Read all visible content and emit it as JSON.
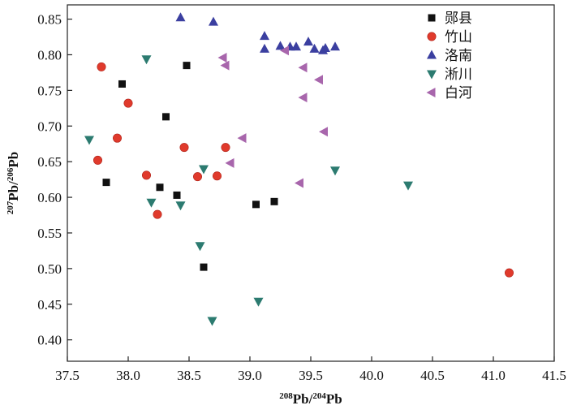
{
  "chart_data": {
    "type": "scatter",
    "xlabel": {
      "sup1": "208",
      "main1": "Pb/",
      "sup2": "204",
      "main2": "Pb"
    },
    "ylabel": {
      "sup1": "207",
      "main1": "Pb/",
      "sup2": "206",
      "main2": "Pb"
    },
    "xlim": [
      37.5,
      41.5
    ],
    "ylim": [
      0.37,
      0.87
    ],
    "xticks": [
      "37.5",
      "38.0",
      "38.5",
      "39.0",
      "39.5",
      "40.0",
      "40.5",
      "41.0",
      "41.5"
    ],
    "yticks": [
      "0.40",
      "0.45",
      "0.50",
      "0.55",
      "0.60",
      "0.65",
      "0.70",
      "0.75",
      "0.80",
      "0.85"
    ],
    "grid": false,
    "legend_position": "top-right",
    "series": [
      {
        "name": "郧县",
        "marker": "square",
        "color": "#111111",
        "points": [
          [
            37.82,
            0.621
          ],
          [
            37.95,
            0.759
          ],
          [
            38.26,
            0.614
          ],
          [
            38.31,
            0.713
          ],
          [
            38.4,
            0.603
          ],
          [
            38.48,
            0.785
          ],
          [
            38.62,
            0.502
          ],
          [
            39.05,
            0.59
          ],
          [
            39.2,
            0.594
          ]
        ]
      },
      {
        "name": "竹山",
        "marker": "circle",
        "color": "#e03a2c",
        "points": [
          [
            37.75,
            0.652
          ],
          [
            37.78,
            0.783
          ],
          [
            37.91,
            0.683
          ],
          [
            38.0,
            0.732
          ],
          [
            38.15,
            0.631
          ],
          [
            38.24,
            0.576
          ],
          [
            38.46,
            0.67
          ],
          [
            38.57,
            0.629
          ],
          [
            38.73,
            0.63
          ],
          [
            38.8,
            0.67
          ],
          [
            41.13,
            0.494
          ]
        ]
      },
      {
        "name": "洛南",
        "marker": "triangle-up",
        "color": "#3b3fa0",
        "points": [
          [
            38.43,
            0.852
          ],
          [
            38.7,
            0.846
          ],
          [
            39.12,
            0.826
          ],
          [
            39.12,
            0.808
          ],
          [
            39.25,
            0.812
          ],
          [
            39.33,
            0.811
          ],
          [
            39.38,
            0.811
          ],
          [
            39.48,
            0.818
          ],
          [
            39.53,
            0.808
          ],
          [
            39.6,
            0.806
          ],
          [
            39.62,
            0.809
          ],
          [
            39.7,
            0.811
          ]
        ]
      },
      {
        "name": "淅川",
        "marker": "triangle-down",
        "color": "#2c7b70",
        "points": [
          [
            37.68,
            0.681
          ],
          [
            38.15,
            0.794
          ],
          [
            38.19,
            0.593
          ],
          [
            38.43,
            0.589
          ],
          [
            38.59,
            0.532
          ],
          [
            38.62,
            0.64
          ],
          [
            38.69,
            0.427
          ],
          [
            39.07,
            0.454
          ],
          [
            39.7,
            0.638
          ],
          [
            40.3,
            0.617
          ]
        ]
      },
      {
        "name": "白河",
        "marker": "triangle-left",
        "color": "#a866ac",
        "points": [
          [
            38.78,
            0.796
          ],
          [
            38.8,
            0.785
          ],
          [
            38.84,
            0.648
          ],
          [
            38.94,
            0.683
          ],
          [
            39.29,
            0.806
          ],
          [
            39.41,
            0.62
          ],
          [
            39.44,
            0.782
          ],
          [
            39.44,
            0.74
          ],
          [
            39.57,
            0.765
          ],
          [
            39.61,
            0.692
          ]
        ]
      }
    ]
  }
}
